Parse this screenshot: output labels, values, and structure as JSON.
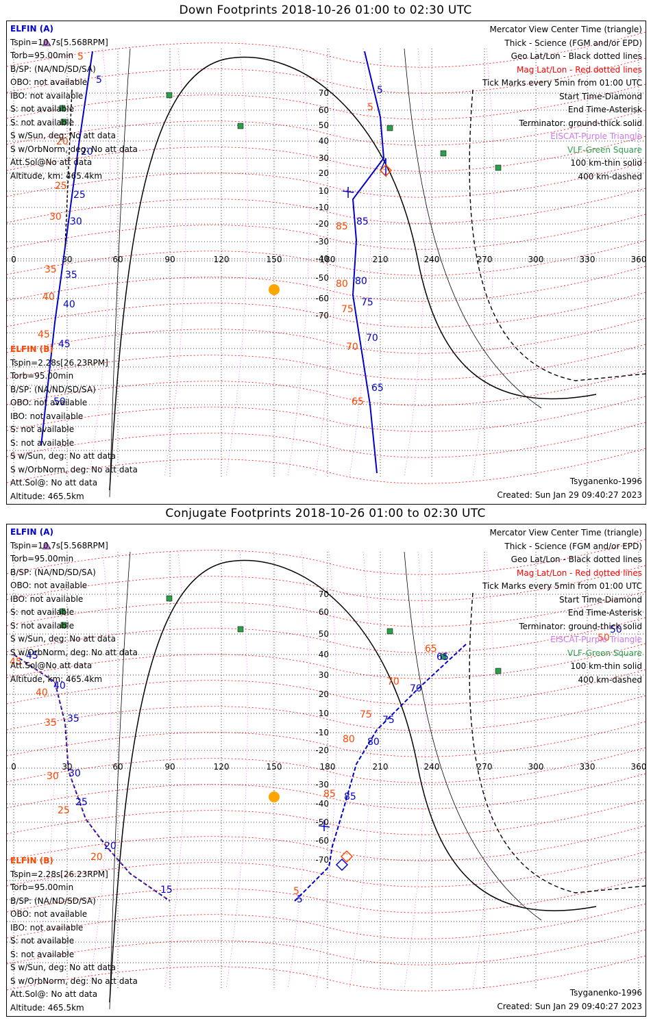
{
  "panels": [
    {
      "title": "Down Footprints 2018-10-26 01:00 to 02:30 UTC",
      "sat_a": {
        "name": "ELFIN (A)",
        "lines": [
          "Tspin=10.7s[5.568RPM]",
          "Torb=95.00min",
          "B/SP: (NA/ND/SD/SA)",
          "OBO: not available",
          "IBO: not available",
          "S: not available",
          "S: not available",
          "S w/Sun, deg: No att data",
          "S w/OrbNorm, deg: No att data",
          "Att.Sol@No att data",
          "Altitude, km: 465.4km"
        ]
      },
      "sat_b": {
        "name": "ELFIN (B)",
        "lines": [
          "Tspin=2.28s[26.23RPM]",
          "Torb=95.00min",
          "B/SP: (NA/ND/SD/SA)",
          "OBO: not available",
          "IBO: not available",
          "S: not available",
          "S: not available",
          "S w/Sun, deg: No att data",
          "S w/OrbNorm, deg: No att data",
          "Att.Sol@: No att data",
          "Altitude: 465.5km"
        ]
      },
      "legend": [
        {
          "text": "Mercator View Center Time (triangle)",
          "color": "black"
        },
        {
          "text": "Thick - Science (FGM and/or EPD)",
          "color": "black"
        },
        {
          "text": "Geo Lat/Lon - Black dotted lines",
          "color": "black"
        },
        {
          "text": "Mag Lat/Lon - Red dotted lines",
          "color": "red"
        },
        {
          "text": "Tick Marks every 5min from 01:00 UTC",
          "color": "black"
        },
        {
          "text": "Start Time-Diamond",
          "color": "black"
        },
        {
          "text": "End Time-Asterisk",
          "color": "black"
        },
        {
          "text": "Terminator: ground-thick solid",
          "color": "black"
        },
        {
          "text": "EISCAT-Purple Triangle",
          "color": "purple"
        },
        {
          "text": "VLF-Green Square",
          "color": "green"
        },
        {
          "text": "100 km-thin solid",
          "color": "black"
        },
        {
          "text": "400 km-dashed",
          "color": "black"
        }
      ],
      "model": "Tsyganenko-1996",
      "created": "Created: Sun Jan 29 09:40:27 2023",
      "track_labels_a": [
        "5",
        "5",
        "20",
        "25",
        "30",
        "35",
        "40",
        "45",
        "50",
        "5",
        "85",
        "80",
        "75",
        "70",
        "65"
      ],
      "track_labels_b": [
        "5",
        "20",
        "25",
        "30",
        "35",
        "40",
        "45",
        "50",
        "5",
        "85",
        "80",
        "75",
        "70",
        "65"
      ]
    },
    {
      "title": "Conjugate Footprints 2018-10-26 01:00 to 02:30 UTC",
      "sat_a": {
        "name": "ELFIN (A)",
        "lines": [
          "Tspin=10.7s[5.568RPM]",
          "Torb=95.00min",
          "B/SP: (NA/ND/SD/SA)",
          "OBO: not available",
          "IBO: not available",
          "S: not available",
          "S: not available",
          "S w/Sun, deg: No att data",
          "S w/OrbNorm, deg: No att data",
          "Att.Sol@No att data",
          "Altitude, km: 465.4km"
        ]
      },
      "sat_b": {
        "name": "ELFIN (B)",
        "lines": [
          "Tspin=2.28s[26.23RPM]",
          "Torb=95.00min",
          "B/SP: (NA/ND/SD/SA)",
          "OBO: not available",
          "IBO: not available",
          "S: not available",
          "S: not available",
          "S w/Sun, deg: No att data",
          "S w/OrbNorm, deg: No att data",
          "Att.Sol@: No att data",
          "Altitude: 465.5km"
        ]
      },
      "legend": [
        {
          "text": "Mercator View Center Time (triangle)",
          "color": "black"
        },
        {
          "text": "Thick - Science (FGM and/or EPD)",
          "color": "black"
        },
        {
          "text": "Geo Lat/Lon - Black dotted lines",
          "color": "black"
        },
        {
          "text": "Mag Lat/Lon - Red dotted lines",
          "color": "red"
        },
        {
          "text": "Tick Marks every 5min from 01:00 UTC",
          "color": "black"
        },
        {
          "text": "Start Time-Diamond",
          "color": "black"
        },
        {
          "text": "End Time-Asterisk",
          "color": "black"
        },
        {
          "text": "Terminator: ground-thick solid",
          "color": "black"
        },
        {
          "text": "EISCAT-Purple Triangle",
          "color": "purple"
        },
        {
          "text": "VLF-Green Square",
          "color": "green"
        },
        {
          "text": "100 km-thin solid",
          "color": "black"
        },
        {
          "text": "400 km-dashed",
          "color": "black"
        }
      ],
      "model": "Tsyganenko-1996",
      "created": "Created: Sun Jan 29 09:40:27 2023",
      "track_labels_a": [
        "45",
        "40",
        "35",
        "30",
        "25",
        "20",
        "15",
        "5",
        "85",
        "80",
        "75",
        "70",
        "65",
        "50"
      ],
      "track_labels_b": [
        "45",
        "40",
        "35",
        "30",
        "25",
        "20",
        "5",
        "85",
        "80",
        "75",
        "70",
        "65",
        "50"
      ]
    }
  ],
  "axes": {
    "lon_ticks": [
      "0",
      "30",
      "60",
      "90",
      "120",
      "150",
      "180",
      "210",
      "240",
      "270",
      "300",
      "330",
      "360"
    ],
    "lat_ticks": [
      "70",
      "60",
      "50",
      "40",
      "30",
      "20",
      "10",
      "-10",
      "-20",
      "-30",
      "-40",
      "-50",
      "-60",
      "-70"
    ]
  },
  "colors": {
    "sat_a": "#0000cc",
    "sat_b": "#ff4500",
    "mag_grid": "#ff0000",
    "eiscat": "#cc77ee",
    "vlf": "#2e9e4a",
    "sun": "#ffa500"
  }
}
